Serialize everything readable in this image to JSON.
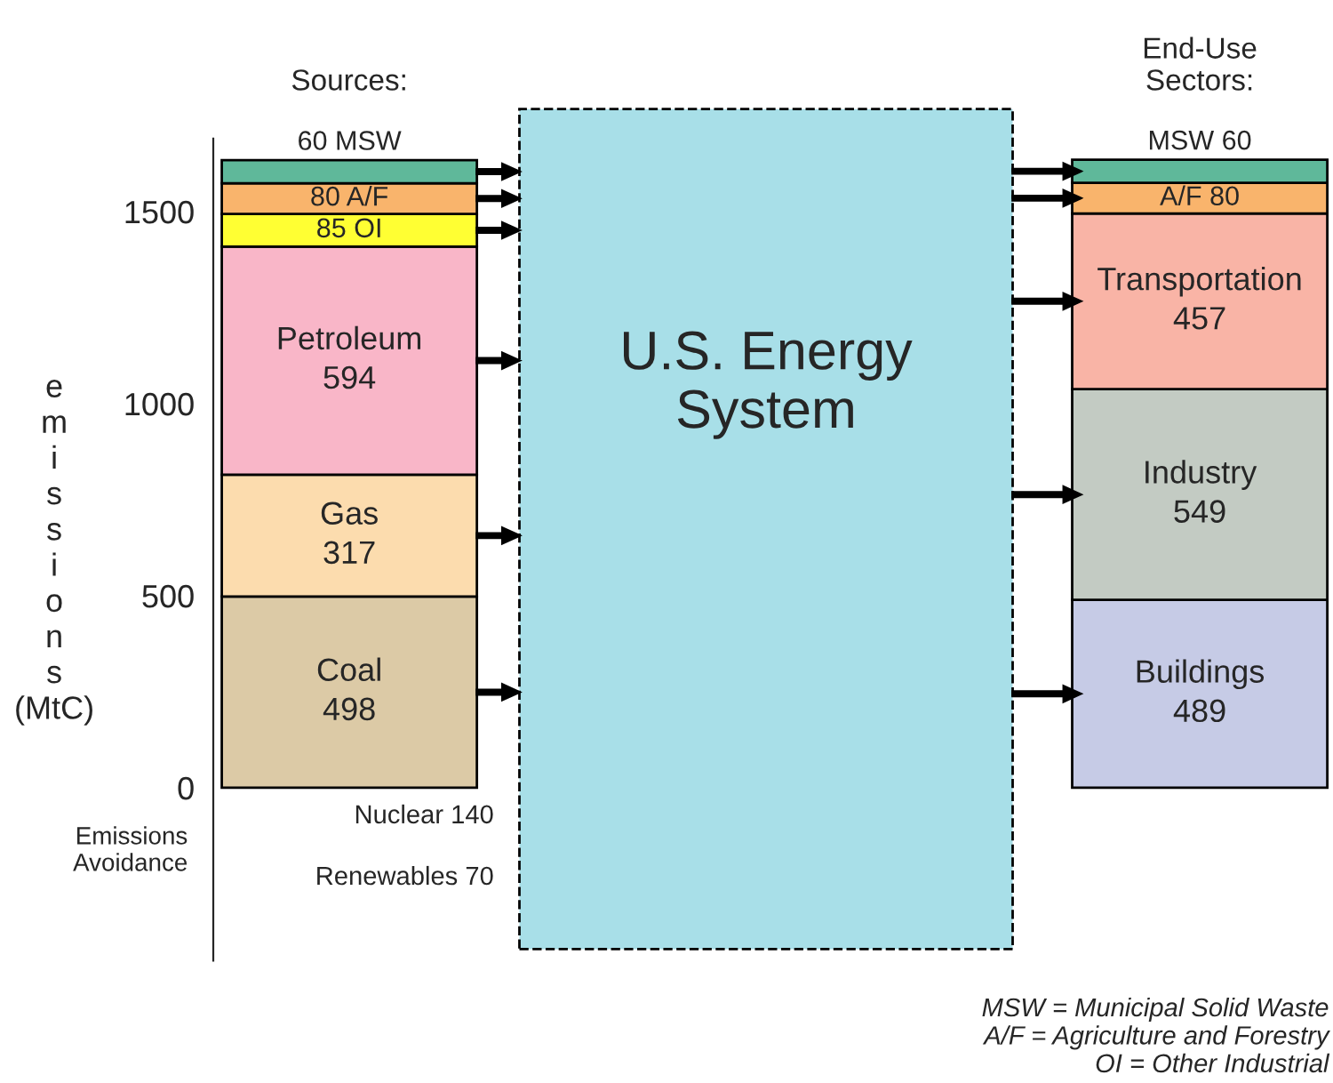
{
  "chart_data": {
    "type": "bar",
    "stacked": true,
    "categories": [
      null,
      null
    ],
    "ylabel": "emissions (MtC)",
    "ylim": [
      -450,
      1690
    ],
    "yticks": [
      0,
      500,
      1000,
      1500
    ],
    "series": [
      {
        "colors": [
          "#dccaa6",
          "#c6cbe6"
        ],
        "values": [
          498,
          489
        ],
        "value_labels": [
          "Coal\n498",
          "Buildings\n489"
        ]
      },
      {
        "colors": [
          "#fcdcae",
          "#c3cbc3"
        ],
        "values": [
          317,
          549
        ],
        "value_labels": [
          "Gas\n317",
          "Industry\n549"
        ]
      },
      {
        "colors": [
          "#f9b6c8",
          "#f9b4a6"
        ],
        "values": [
          594,
          457
        ],
        "value_labels": [
          "Petroleum\n594",
          "Transportation\n457"
        ]
      },
      {
        "colors": [
          "#ffff33",
          "#f9b46c"
        ],
        "values": [
          85,
          80
        ],
        "value_labels": [
          "85 OI",
          "A/F 80"
        ]
      },
      {
        "colors": [
          "#f9b46c",
          "#5fb89a"
        ],
        "values": [
          80,
          60
        ],
        "value_labels": [
          "80 A/F",
          "MSW 60"
        ]
      },
      {
        "colors": [
          "#5fb89a",
          null
        ],
        "values": [
          60,
          null
        ],
        "value_labels": [
          "60 MSW",
          null
        ]
      }
    ],
    "annotations": [
      "U.S. Energy System",
      "Sources:",
      "End-Use\nSectors:",
      "Emissions\nAvoidance",
      "Nuclear 140",
      "Renewables 70",
      "MSW = Municipal Solid Waste\nA/F = Agriculture and Forestry\nOI = Other Industrial"
    ]
  }
}
